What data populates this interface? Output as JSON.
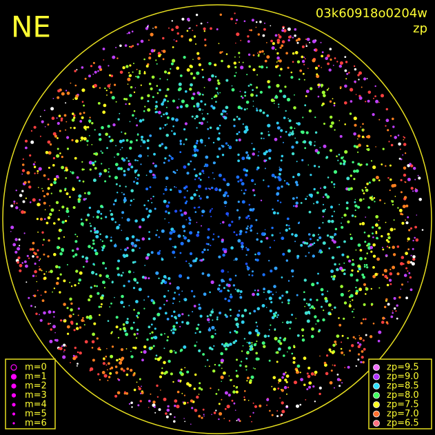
{
  "header": {
    "label": "NE",
    "title": "03k60918o0204w",
    "subtitle": "zp"
  },
  "legend_m": {
    "items": [
      "m=0",
      "m=1",
      "m=2",
      "m=3",
      "m=4",
      "m=5",
      "m=6"
    ],
    "color": "#ff00ff"
  },
  "legend_zp": {
    "items": [
      {
        "label": "zp=9.5",
        "color": "#f070ff"
      },
      {
        "label": "zp=9.0",
        "color": "#b030ff"
      },
      {
        "label": "zp=8.5",
        "color": "#30e0ff"
      },
      {
        "label": "zp=8.0",
        "color": "#40ff60"
      },
      {
        "label": "zp=7.5",
        "color": "#ffff20"
      },
      {
        "label": "zp=7.0",
        "color": "#ff7030"
      },
      {
        "label": "zp=6.5",
        "color": "#ff7080"
      }
    ]
  }
}
